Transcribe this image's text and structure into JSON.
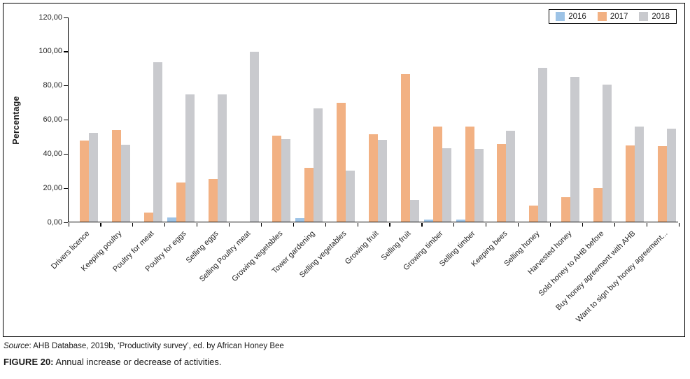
{
  "figure": {
    "source_prefix": "Source",
    "source_rest": ": AHB Database, 2019b, ‘Productivity survey’, ed. by African Honey Bee",
    "caption_prefix": "FIGURE 20:",
    "caption_rest": " Annual increase or decrease of activities."
  },
  "chart_data": {
    "type": "bar",
    "title": "",
    "xlabel": "",
    "ylabel": "Percentage",
    "ylim": [
      0,
      120
    ],
    "ytick_step": 20,
    "ytick_labels": [
      "0,00",
      "20,00",
      "40,00",
      "60,00",
      "80,00",
      "100,00",
      "120,00"
    ],
    "grid": false,
    "legend_position": "top-right",
    "categories": [
      "Drivers licence",
      "Keeping poultry",
      "Poultry for meat",
      "Poultry for eggs",
      "Selling eggs",
      "Selling Poultry meat",
      "Growing vegetables",
      "Tower gardening",
      "Selling vegetables",
      "Growing fruit",
      "Selling fruit",
      "Growing timber",
      "Selling timber",
      "Keeping bees",
      "Selling honey",
      "Harvested honey",
      "Sold honey to AHB before",
      "Buy honey agreement with AHB",
      "Want to sign buy honey agreement..."
    ],
    "series": [
      {
        "name": "2016",
        "color": "#9DC3E6",
        "values": [
          0,
          0,
          0,
          2.6,
          0,
          0,
          0,
          2.2,
          0,
          0,
          0,
          1.1,
          1.1,
          0,
          0,
          0,
          0,
          0,
          0
        ]
      },
      {
        "name": "2017",
        "color": "#F2B183",
        "values": [
          47.5,
          54.0,
          5.5,
          23.2,
          25.0,
          0,
          50.7,
          31.5,
          70.0,
          51.2,
          86.9,
          55.7,
          55.7,
          45.6,
          9.5,
          14.2,
          19.8,
          44.6,
          44.5
        ]
      },
      {
        "name": "2018",
        "color": "#C9CACE",
        "values": [
          52.0,
          45.2,
          93.7,
          74.8,
          74.8,
          99.8,
          48.7,
          66.7,
          30.0,
          47.9,
          12.8,
          43.0,
          42.8,
          53.3,
          90.4,
          85.0,
          80.6,
          55.8,
          54.5
        ]
      }
    ]
  }
}
